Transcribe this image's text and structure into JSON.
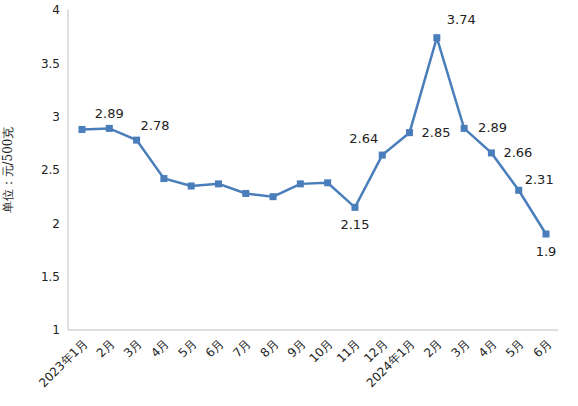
{
  "chart_data": {
    "type": "line",
    "y_label": "单位：元/500克",
    "categories": [
      "2023年1月",
      "2月",
      "3月",
      "4月",
      "5月",
      "6月",
      "7月",
      "8月",
      "9月",
      "10月",
      "11月",
      "12月",
      "2024年1月",
      "2月",
      "3月",
      "4月",
      "5月",
      "6月"
    ],
    "values": [
      2.88,
      2.89,
      2.78,
      2.42,
      2.35,
      2.37,
      2.28,
      2.25,
      2.37,
      2.38,
      2.15,
      2.64,
      2.85,
      3.74,
      2.89,
      2.66,
      2.31,
      1.9
    ],
    "value_labels": [
      null,
      "2.89",
      "2.78",
      null,
      null,
      null,
      null,
      null,
      null,
      null,
      "2.15",
      "2.64",
      "2.85",
      "3.74",
      "2.89",
      "2.66",
      "2.31",
      "1.9"
    ],
    "data_labels": true,
    "color": "#4a7ebb",
    "marker": "square",
    "line_style": "solid",
    "ylim": [
      1,
      4
    ],
    "yticks": [
      1,
      1.5,
      2,
      2.5,
      3,
      3.5,
      4
    ],
    "grid": false
  }
}
